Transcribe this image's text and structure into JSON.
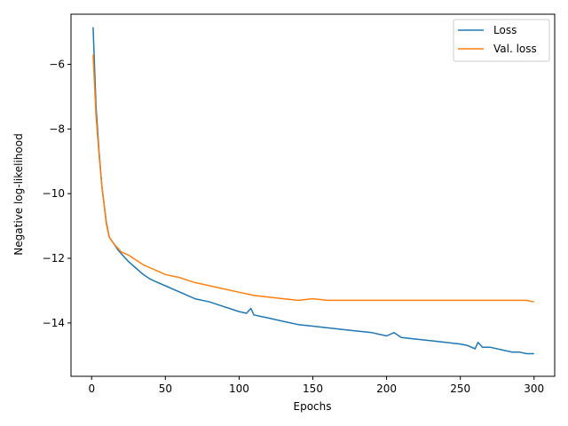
{
  "chart_data": {
    "type": "line",
    "title": "",
    "xlabel": "Epochs",
    "ylabel": "Negative log-likelihood",
    "xlim": [
      -14,
      314
    ],
    "ylim": [
      -15.65,
      -4.45
    ],
    "xticks": [
      0,
      50,
      100,
      150,
      200,
      250,
      300
    ],
    "yticks": [
      -14,
      -12,
      -10,
      -8,
      -6
    ],
    "grid": false,
    "legend_position": "top-right",
    "colors": {
      "Loss": "#1f77b4",
      "Val. loss": "#ff7f0e"
    },
    "series": [
      {
        "name": "Loss",
        "x": [
          1,
          3,
          5,
          7,
          10,
          12,
          15,
          18,
          20,
          25,
          30,
          35,
          40,
          45,
          50,
          60,
          70,
          80,
          90,
          100,
          105,
          108,
          110,
          115,
          120,
          130,
          140,
          150,
          160,
          170,
          180,
          190,
          200,
          205,
          210,
          220,
          230,
          240,
          250,
          255,
          260,
          262,
          265,
          270,
          280,
          285,
          290,
          295,
          300
        ],
        "values": [
          -4.85,
          -7.3,
          -8.7,
          -9.8,
          -10.9,
          -11.35,
          -11.55,
          -11.75,
          -11.85,
          -12.1,
          -12.3,
          -12.5,
          -12.65,
          -12.75,
          -12.85,
          -13.05,
          -13.25,
          -13.35,
          -13.5,
          -13.65,
          -13.7,
          -13.55,
          -13.75,
          -13.8,
          -13.85,
          -13.95,
          -14.05,
          -14.1,
          -14.15,
          -14.2,
          -14.25,
          -14.3,
          -14.4,
          -14.3,
          -14.45,
          -14.5,
          -14.55,
          -14.6,
          -14.65,
          -14.7,
          -14.8,
          -14.6,
          -14.75,
          -14.75,
          -14.85,
          -14.9,
          -14.9,
          -14.95,
          -14.95
        ]
      },
      {
        "name": "Val. loss",
        "x": [
          1,
          3,
          5,
          7,
          10,
          12,
          15,
          18,
          20,
          25,
          30,
          35,
          40,
          45,
          50,
          60,
          70,
          80,
          90,
          100,
          110,
          120,
          130,
          140,
          150,
          160,
          170,
          180,
          190,
          200,
          210,
          220,
          230,
          240,
          250,
          260,
          270,
          280,
          290,
          295,
          300
        ],
        "values": [
          -5.7,
          -7.6,
          -8.8,
          -9.8,
          -10.95,
          -11.35,
          -11.55,
          -11.7,
          -11.8,
          -11.9,
          -12.05,
          -12.2,
          -12.3,
          -12.4,
          -12.5,
          -12.6,
          -12.75,
          -12.85,
          -12.95,
          -13.05,
          -13.15,
          -13.2,
          -13.25,
          -13.3,
          -13.25,
          -13.3,
          -13.3,
          -13.3,
          -13.3,
          -13.3,
          -13.3,
          -13.3,
          -13.3,
          -13.3,
          -13.3,
          -13.3,
          -13.3,
          -13.3,
          -13.3,
          -13.3,
          -13.35
        ]
      }
    ]
  }
}
